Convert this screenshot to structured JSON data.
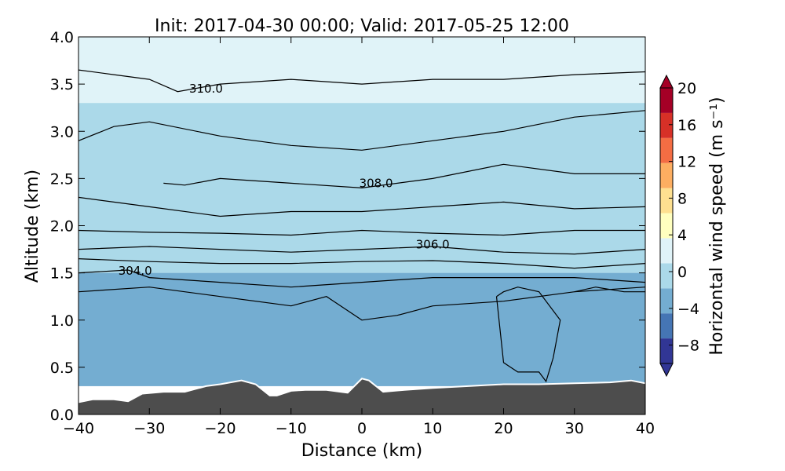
{
  "chart_data": {
    "type": "heatmap",
    "title": "Init: 2017-04-30 00:00; Valid: 2017-05-25 12:00",
    "xlabel": "Distance (km)",
    "ylabel": "Altitude (km)",
    "xlim": [
      -40,
      40
    ],
    "ylim": [
      0.0,
      4.0
    ],
    "xticks": [
      "−40",
      "−30",
      "−20",
      "−10",
      "0",
      "10",
      "20",
      "30",
      "40"
    ],
    "yticks": [
      "0.0",
      "0.5",
      "1.0",
      "1.5",
      "2.0",
      "2.5",
      "3.0",
      "3.5",
      "4.0"
    ],
    "colorbar": {
      "label": "Horizontal wind speed (m s⁻¹)",
      "range": [
        -10,
        20
      ],
      "ticks": [
        "−8",
        "−4",
        "0",
        "4",
        "8",
        "12",
        "16",
        "20"
      ],
      "colormap": [
        "#313695",
        "#4575b4",
        "#74add1",
        "#abd9e9",
        "#e0f3f8",
        "#ffffbf",
        "#fee090",
        "#fdae61",
        "#f46d43",
        "#d73027",
        "#a50026"
      ]
    },
    "wind_speed_bands": [
      {
        "altitude_range": [
          3.3,
          4.0
        ],
        "value": 1
      },
      {
        "altitude_range": [
          2.0,
          3.3
        ],
        "value": 0
      },
      {
        "altitude_range": [
          1.5,
          2.0
        ],
        "value": -1
      },
      {
        "altitude_range": [
          0.3,
          1.5
        ],
        "value": -4
      }
    ],
    "contour_labels": [
      {
        "text": "310.0",
        "x": -22,
        "y": 3.45
      },
      {
        "text": "308.0",
        "x": 2,
        "y": 2.45
      },
      {
        "text": "306.0",
        "x": 10,
        "y": 1.8
      },
      {
        "text": "304.0",
        "x": -32,
        "y": 1.52
      }
    ],
    "contours": [
      {
        "x": [
          -40,
          -35,
          -30,
          -26,
          -20,
          -10,
          0,
          10,
          20,
          30,
          40
        ],
        "y": [
          3.65,
          3.6,
          3.55,
          3.42,
          3.5,
          3.55,
          3.5,
          3.55,
          3.55,
          3.6,
          3.63
        ]
      },
      {
        "x": [
          -40,
          -35,
          -30,
          -20,
          -10,
          0,
          10,
          20,
          30,
          40
        ],
        "y": [
          2.9,
          3.05,
          3.1,
          2.95,
          2.85,
          2.8,
          2.9,
          3.0,
          3.15,
          3.22
        ]
      },
      {
        "x": [
          -28,
          -25,
          -20,
          -10,
          0,
          10,
          20,
          30,
          40
        ],
        "y": [
          2.45,
          2.43,
          2.5,
          2.45,
          2.4,
          2.5,
          2.65,
          2.55,
          2.55
        ]
      },
      {
        "x": [
          -40,
          -30,
          -20,
          -10,
          0,
          10,
          20,
          30,
          40
        ],
        "y": [
          2.3,
          2.2,
          2.1,
          2.15,
          2.15,
          2.2,
          2.25,
          2.18,
          2.2
        ]
      },
      {
        "x": [
          -40,
          -30,
          -20,
          -10,
          0,
          10,
          20,
          30,
          40
        ],
        "y": [
          1.95,
          1.93,
          1.92,
          1.9,
          1.95,
          1.92,
          1.9,
          1.95,
          1.95
        ]
      },
      {
        "x": [
          -40,
          -30,
          -20,
          -10,
          0,
          10,
          20,
          30,
          40
        ],
        "y": [
          1.75,
          1.78,
          1.75,
          1.72,
          1.75,
          1.78,
          1.72,
          1.7,
          1.75
        ]
      },
      {
        "x": [
          -40,
          -30,
          -20,
          -10,
          0,
          10,
          20,
          30,
          40
        ],
        "y": [
          1.65,
          1.62,
          1.6,
          1.6,
          1.62,
          1.63,
          1.6,
          1.55,
          1.6
        ]
      },
      {
        "x": [
          -40,
          -33,
          -30,
          -20,
          -10,
          0,
          10,
          20,
          30,
          40
        ],
        "y": [
          1.5,
          1.53,
          1.45,
          1.4,
          1.35,
          1.4,
          1.45,
          1.45,
          1.45,
          1.4
        ]
      },
      {
        "x": [
          -40,
          -30,
          -20,
          -10,
          -5,
          0,
          5,
          10,
          20,
          30,
          40
        ],
        "y": [
          1.3,
          1.35,
          1.25,
          1.15,
          1.25,
          1.0,
          1.05,
          1.15,
          1.2,
          1.3,
          1.35
        ]
      },
      {
        "x": [
          19,
          20,
          22,
          25,
          28,
          27,
          26,
          25,
          22,
          21,
          20,
          19
        ],
        "y": [
          1.25,
          1.3,
          1.35,
          1.3,
          1.0,
          0.6,
          0.35,
          0.45,
          0.45,
          0.5,
          0.55,
          1.25
        ]
      },
      {
        "x": [
          30,
          33,
          37,
          40
        ],
        "y": [
          1.3,
          1.35,
          1.3,
          1.3
        ]
      }
    ],
    "terrain": {
      "x": [
        -40,
        -38,
        -35,
        -33,
        -31,
        -28,
        -25,
        -22,
        -20,
        -17,
        -15,
        -13,
        -12,
        -10,
        -8,
        -5,
        -2,
        0,
        1,
        3,
        6,
        10,
        15,
        20,
        25,
        30,
        35,
        38,
        40
      ],
      "y": [
        0.13,
        0.16,
        0.16,
        0.14,
        0.22,
        0.24,
        0.24,
        0.3,
        0.32,
        0.36,
        0.32,
        0.2,
        0.2,
        0.25,
        0.26,
        0.26,
        0.23,
        0.38,
        0.36,
        0.24,
        0.26,
        0.28,
        0.3,
        0.32,
        0.32,
        0.33,
        0.34,
        0.36,
        0.33
      ]
    },
    "grid": false,
    "legend": "none"
  }
}
